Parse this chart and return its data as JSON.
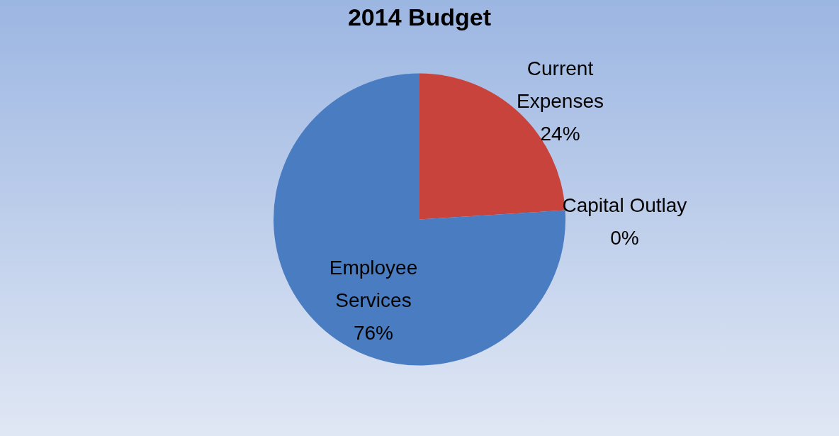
{
  "chart_data": {
    "type": "pie",
    "title": "2014 Budget",
    "categories": [
      "Current Expenses",
      "Capital Outlay",
      "Employee Services"
    ],
    "values": [
      24,
      0,
      76
    ],
    "value_labels": [
      "24%",
      "0%",
      "76%"
    ],
    "colors": [
      "#c8433b",
      "#8e5bb5",
      "#4a7cc2"
    ],
    "legend": false
  }
}
